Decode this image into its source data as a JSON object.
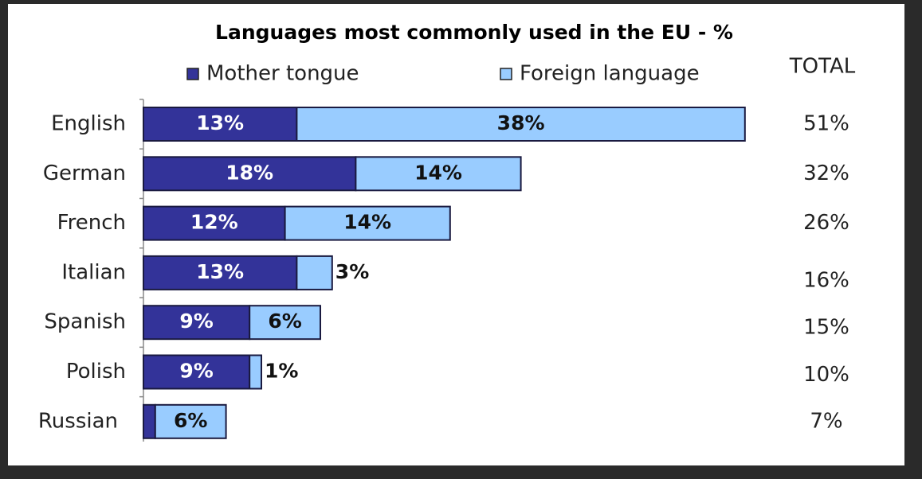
{
  "chart_data": {
    "type": "bar",
    "orientation": "horizontal",
    "stacked": true,
    "title": "Languages most commonly used in the EU - %",
    "categories": [
      "English",
      "German",
      "French",
      "Italian",
      "Spanish",
      "Polish",
      "Russian"
    ],
    "series": [
      {
        "name": "Mother tongue",
        "color": "#333399",
        "values": [
          13,
          18,
          12,
          13,
          9,
          9,
          1
        ],
        "value_labels": [
          "13%",
          "18%",
          "12%",
          "13%",
          "9%",
          "9%",
          null
        ]
      },
      {
        "name": "Foreign language",
        "color": "#99ccff",
        "values": [
          38,
          14,
          14,
          3,
          6,
          1,
          6
        ],
        "value_labels": [
          "38%",
          "14%",
          "14%",
          "3%",
          "6%",
          "1%",
          "6%"
        ]
      }
    ],
    "total_header": "TOTAL",
    "total_labels": [
      "51%",
      "32%",
      "26%",
      "16%",
      "15%",
      "10%",
      "7%"
    ]
  }
}
